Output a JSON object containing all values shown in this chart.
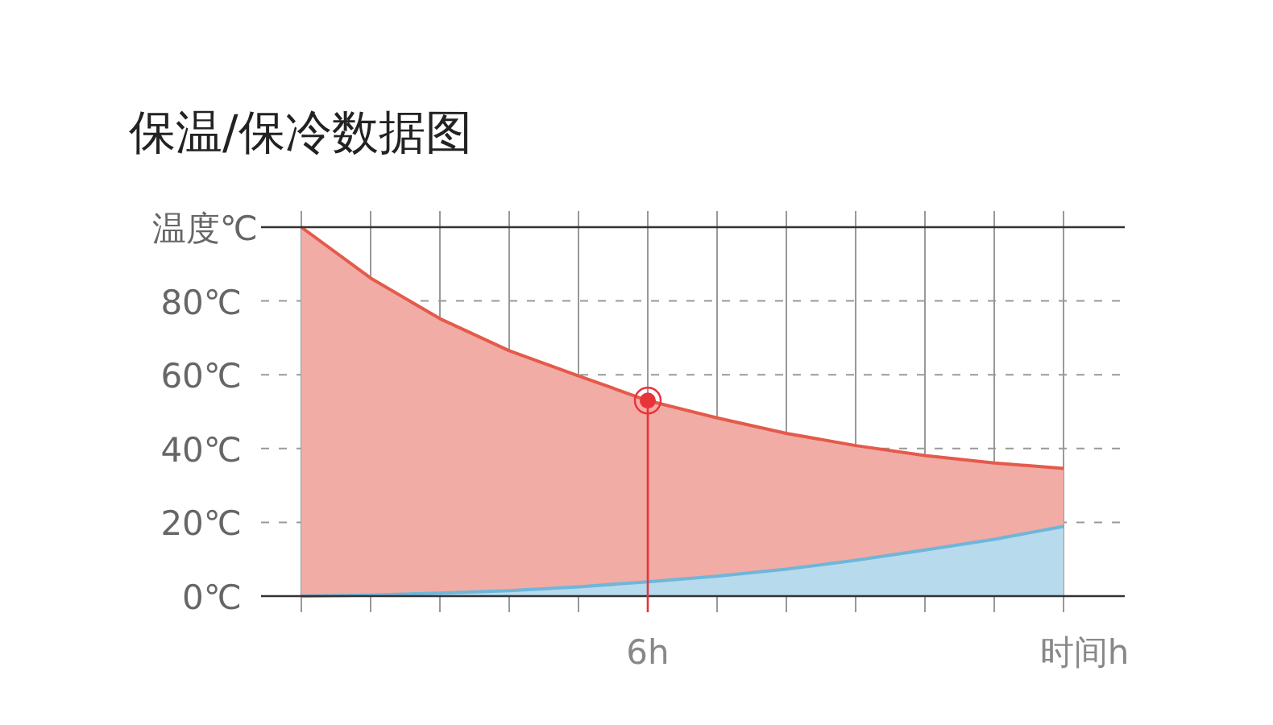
{
  "chart_data": {
    "type": "area",
    "title": "保温/保冷数据图",
    "xlabel": "时间h",
    "ylabel": "温度℃",
    "categories": [
      null,
      null,
      null,
      null,
      null,
      "6h",
      null,
      null,
      null,
      null,
      null,
      null
    ],
    "series": [
      {
        "name": null,
        "color": "#e45a4b",
        "values": [
          100,
          86.2,
          75.2,
          66.5,
          59.7,
          53,
          48.3,
          44.1,
          40.8,
          38.1,
          36.1,
          34.6
        ]
      },
      {
        "name": null,
        "color": "#6fb6da",
        "values": [
          0,
          0.3,
          0.8,
          1.5,
          2.5,
          3.9,
          5.4,
          7.3,
          9.7,
          12.5,
          15.4,
          18.9
        ]
      },
      {
        "name": null,
        "type": "scatter",
        "color": "#e8333a",
        "marker": "circle",
        "x": [
          "6h"
        ],
        "values": [
          53
        ]
      }
    ],
    "ref_lines": [
      {
        "axis": "x",
        "value": "6h",
        "color": "#e8333a"
      }
    ],
    "ylim": [
      0,
      100
    ],
    "yticks": [
      {
        "value": 0,
        "label": "0℃"
      },
      {
        "value": 20,
        "label": "20℃"
      },
      {
        "value": 40,
        "label": "40℃"
      },
      {
        "value": 60,
        "label": "60℃"
      },
      {
        "value": 80,
        "label": "80℃"
      }
    ],
    "grid": true
  }
}
